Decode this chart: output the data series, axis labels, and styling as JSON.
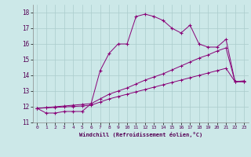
{
  "xlabel": "Windchill (Refroidissement éolien,°C)",
  "background_color": "#cce8e8",
  "grid_color": "#aacccc",
  "line_color": "#880077",
  "xlim": [
    -0.5,
    23.5
  ],
  "ylim": [
    11.0,
    18.5
  ],
  "xticks": [
    0,
    1,
    2,
    3,
    4,
    5,
    6,
    7,
    8,
    9,
    10,
    11,
    12,
    13,
    14,
    15,
    16,
    17,
    18,
    19,
    20,
    21,
    22,
    23
  ],
  "yticks": [
    11,
    12,
    13,
    14,
    15,
    16,
    17,
    18
  ],
  "line1_x": [
    0,
    1,
    2,
    3,
    4,
    5,
    6,
    7,
    8,
    9,
    10,
    11,
    12,
    13,
    14,
    15,
    16,
    17,
    18,
    19,
    20,
    21,
    22,
    23
  ],
  "line1_y": [
    11.9,
    11.6,
    11.6,
    11.7,
    11.7,
    11.7,
    12.2,
    14.3,
    15.4,
    16.0,
    16.0,
    17.75,
    17.9,
    17.75,
    17.5,
    17.0,
    16.7,
    17.2,
    16.0,
    15.8,
    15.8,
    16.3,
    13.6,
    13.6
  ],
  "line2_x": [
    0,
    1,
    2,
    3,
    4,
    5,
    6,
    7,
    8,
    9,
    10,
    11,
    12,
    13,
    14,
    15,
    16,
    17,
    18,
    19,
    20,
    21,
    22,
    23
  ],
  "line2_y": [
    11.9,
    11.95,
    12.0,
    12.05,
    12.1,
    12.15,
    12.2,
    12.5,
    12.8,
    13.0,
    13.2,
    13.45,
    13.7,
    13.9,
    14.1,
    14.35,
    14.6,
    14.85,
    15.1,
    15.3,
    15.55,
    15.75,
    13.6,
    13.65
  ],
  "line3_x": [
    0,
    1,
    2,
    3,
    4,
    5,
    6,
    7,
    8,
    9,
    10,
    11,
    12,
    13,
    14,
    15,
    16,
    17,
    18,
    19,
    20,
    21,
    22,
    23
  ],
  "line3_y": [
    11.9,
    11.93,
    11.96,
    11.99,
    12.02,
    12.05,
    12.1,
    12.3,
    12.5,
    12.65,
    12.8,
    12.95,
    13.1,
    13.25,
    13.4,
    13.55,
    13.7,
    13.85,
    14.0,
    14.15,
    14.3,
    14.45,
    13.6,
    13.6
  ]
}
